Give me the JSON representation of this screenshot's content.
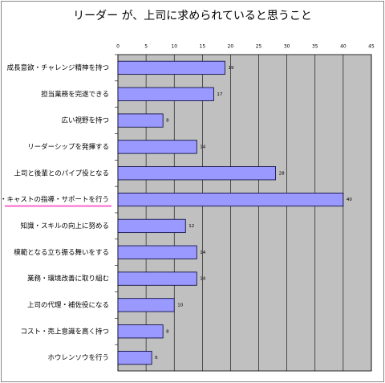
{
  "chart_data": {
    "type": "bar",
    "orientation": "horizontal",
    "title": "リーダー が、上司に求められていると思うこと",
    "categories": [
      "成長意欲・チャレンジ精神を持つ",
      "担当業務を完遂できる",
      "広い視野を持つ",
      "リーダーシップを発揮する",
      "上司と後輩とのパイプ役となる",
      "後輩・キャストの指導・サポートを行う",
      "知識・スキルの向上に努める",
      "模範となる立ち振る舞いをする",
      "業務・環境改善に取り組む",
      "上司の代理・補佐役になる",
      "コスト・売上意識を高く持つ",
      "ホウレンソウを行う"
    ],
    "values": [
      19,
      17,
      8,
      14,
      28,
      40,
      12,
      14,
      14,
      10,
      8,
      6
    ],
    "color": "#9999ff",
    "xlim": [
      0,
      45
    ],
    "xticks": [
      0,
      5,
      10,
      15,
      20,
      25,
      30,
      35,
      40,
      45
    ],
    "grid": true,
    "plot_background": "#c0c0c0",
    "highlight": {
      "index": 5,
      "color": "#ff66cc"
    }
  }
}
